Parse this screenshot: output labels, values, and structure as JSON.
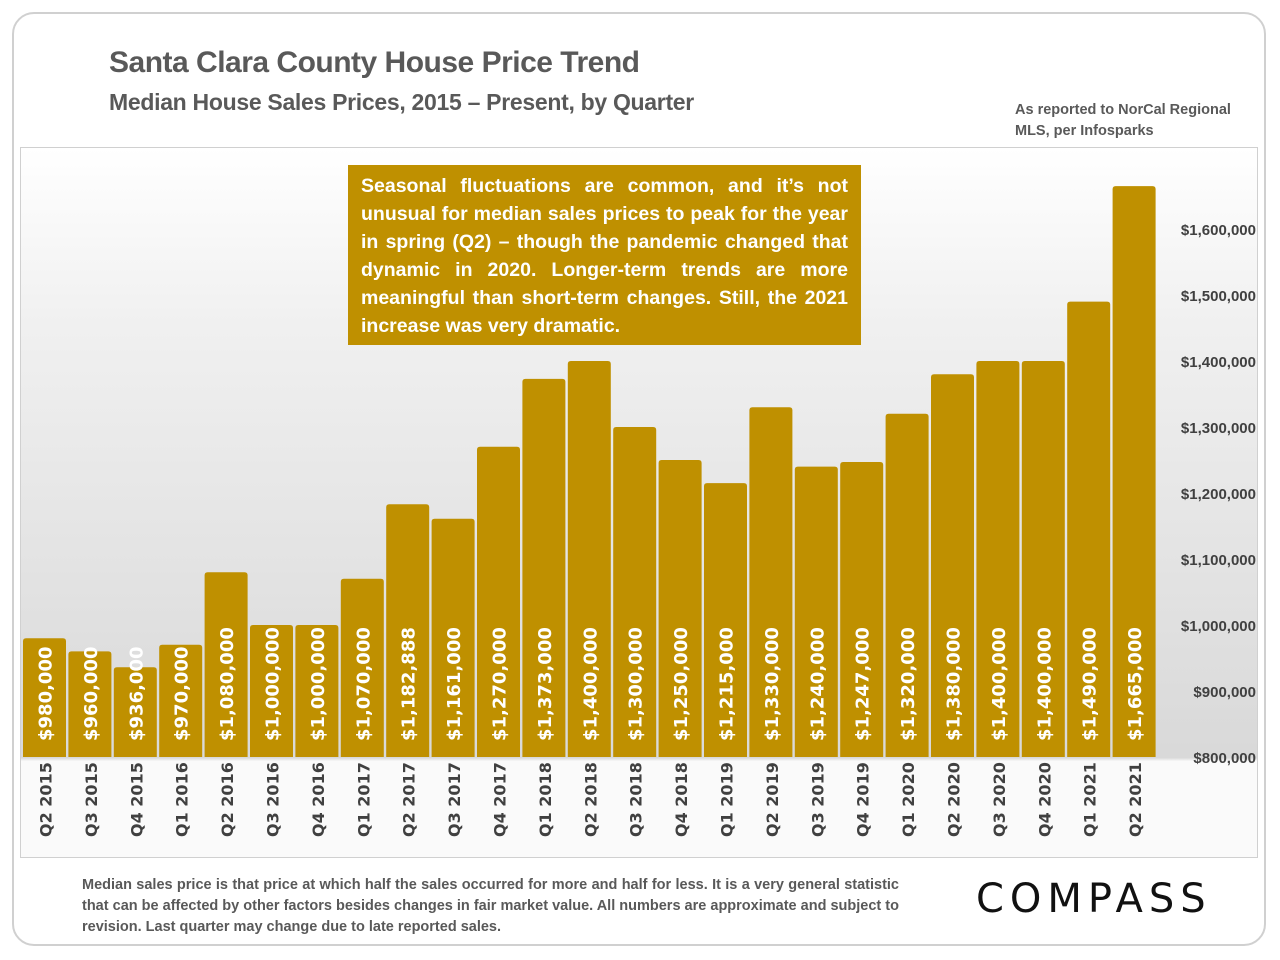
{
  "header": {
    "title": "Santa Clara County House Price Trend",
    "subtitle": "Median House Sales Prices, 2015 – Present, by Quarter",
    "source": "As reported to NorCal Regional MLS, per Infosparks"
  },
  "annotation": "Seasonal fluctuations are common, and it’s not unusual for median sales prices to peak for the year in spring (Q2) – though the pandemic changed that dynamic in 2020. Longer-term trends are more meaningful than short-term changes. Still, the 2021 increase was very dramatic.",
  "footer": "Median sales price is that price at which half the sales occurred for more and half for less. It is a very general statistic that can be affected by other factors besides changes in fair market value. All numbers are approximate and subject to revision. Last quarter may change due to late reported sales.",
  "logo": "COMPASS",
  "chart_data": {
    "type": "bar",
    "title": "",
    "xlabel": "",
    "ylabel": "",
    "ylim": [
      800000,
      1700000
    ],
    "grid": false,
    "bar_color": "#bf9000",
    "yticks": [
      800000,
      900000,
      1000000,
      1100000,
      1200000,
      1300000,
      1400000,
      1500000,
      1600000
    ],
    "ytick_labels": [
      "$800,000",
      "$900,000",
      "$1,000,000",
      "$1,100,000",
      "$1,200,000",
      "$1,300,000",
      "$1,400,000",
      "$1,500,000",
      "$1,600,000"
    ],
    "categories": [
      "Q2 2015",
      "Q3 2015",
      "Q4 2015",
      "Q1 2016",
      "Q2 2016",
      "Q3 2016",
      "Q4 2016",
      "Q1 2017",
      "Q2 2017",
      "Q3 2017",
      "Q4 2017",
      "Q1 2018",
      "Q2 2018",
      "Q3 2018",
      "Q4 2018",
      "Q1 2019",
      "Q2 2019",
      "Q3 2019",
      "Q4 2019",
      "Q1 2020",
      "Q2 2020",
      "Q3 2020",
      "Q4 2020",
      "Q1 2021",
      "Q2 2021"
    ],
    "values": [
      980000,
      960000,
      936000,
      970000,
      1080000,
      1000000,
      1000000,
      1070000,
      1182888,
      1161000,
      1270000,
      1373000,
      1400000,
      1300000,
      1250000,
      1215000,
      1330000,
      1240000,
      1247000,
      1320000,
      1380000,
      1400000,
      1400000,
      1490000,
      1665000
    ],
    "data_labels": [
      "$980,000",
      "$960,000",
      "$936,000",
      "$970,000",
      "$1,080,000",
      "$1,000,000",
      "$1,000,000",
      "$1,070,000",
      "$1,182,888",
      "$1,161,000",
      "$1,270,000",
      "$1,373,000",
      "$1,400,000",
      "$1,300,000",
      "$1,250,000",
      "$1,215,000",
      "$1,330,000",
      "$1,240,000",
      "$1,247,000",
      "$1,320,000",
      "$1,380,000",
      "$1,400,000",
      "$1,400,000",
      "$1,490,000",
      "$1,665,000"
    ]
  }
}
